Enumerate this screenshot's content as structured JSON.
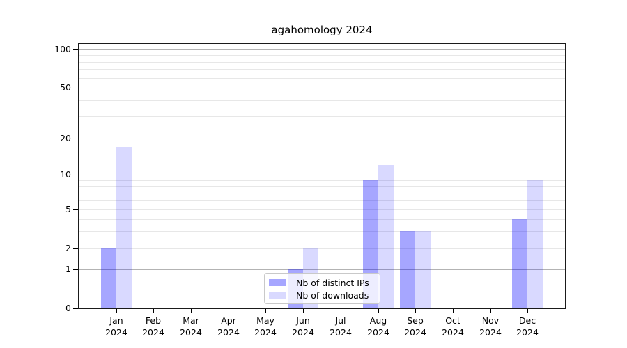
{
  "title": "agahomology 2024",
  "colors": {
    "bar_base": "#0000ff",
    "major_gridline": "#b3b3b3",
    "minor_gridline": "#e7e7e7",
    "axis_spine": "#1a1a1a",
    "legend_border": "#c9c9c9"
  },
  "legend": {
    "items": [
      {
        "label": "Nb of distinct IPs"
      },
      {
        "label": "Nb of downloads"
      }
    ]
  },
  "chart_data": {
    "type": "bar",
    "title": "agahomology 2024",
    "categories": [
      "Jan 2024",
      "Feb 2024",
      "Mar 2024",
      "Apr 2024",
      "May 2024",
      "Jun 2024",
      "Jul 2024",
      "Aug 2024",
      "Sep 2024",
      "Oct 2024",
      "Nov 2024",
      "Dec 2024"
    ],
    "series": [
      {
        "name": "Nb of distinct IPs",
        "color": "#0000ff",
        "opacity": 0.35,
        "values": [
          2,
          0,
          0,
          0,
          0,
          1,
          0,
          9,
          3,
          0,
          0,
          4
        ]
      },
      {
        "name": "Nb of downloads",
        "color": "#0000ff",
        "opacity": 0.15,
        "values": [
          17,
          0,
          0,
          0,
          0,
          2,
          0,
          12,
          3,
          0,
          0,
          9
        ]
      }
    ],
    "xlabel": "",
    "ylabel": "",
    "yscale": "log-like with 0 baseline",
    "ylim": [
      0,
      100
    ],
    "y_major_ticks": [
      0,
      1,
      2,
      5,
      10,
      20,
      50,
      100
    ],
    "y_power_ticks": [
      1,
      10,
      100
    ],
    "y_minor_gridlines": [
      3,
      4,
      6,
      7,
      8,
      9,
      30,
      40,
      60,
      70,
      80,
      90
    ],
    "grid": true,
    "legend_position": "lower center"
  }
}
